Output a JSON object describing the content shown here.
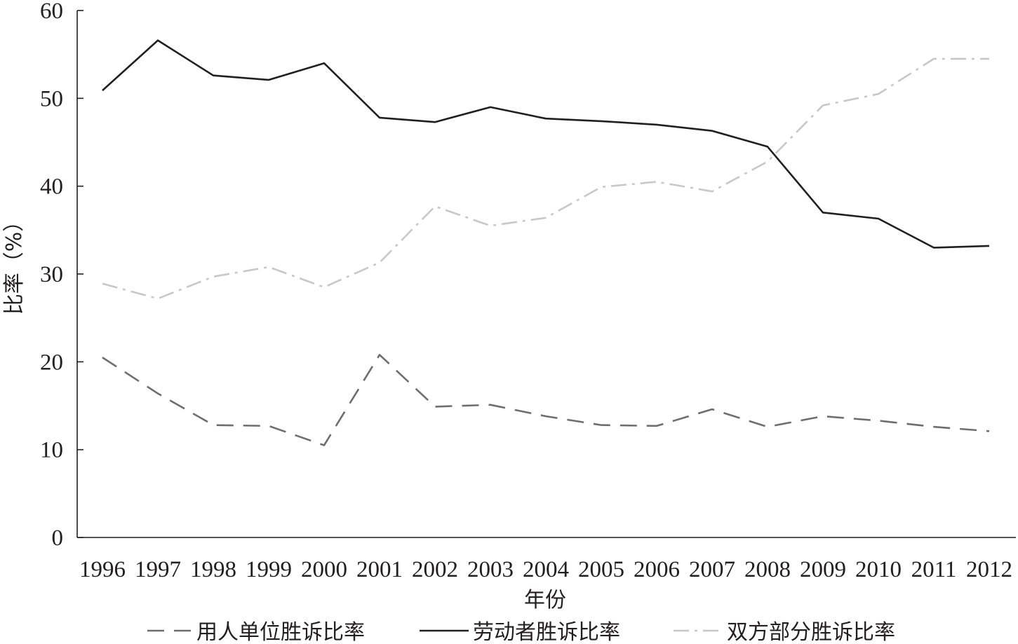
{
  "chart_data": {
    "type": "line",
    "title": "",
    "xlabel": "年份",
    "ylabel": "比率（%）",
    "x": [
      "1996",
      "1997",
      "1998",
      "1999",
      "2000",
      "2001",
      "2002",
      "2003",
      "2004",
      "2005",
      "2006",
      "2007",
      "2008",
      "2009",
      "2010",
      "2011",
      "2012"
    ],
    "ylim": [
      0,
      60
    ],
    "yticks": [
      0,
      10,
      20,
      30,
      40,
      50,
      60
    ],
    "grid": false,
    "legend_position": "bottom",
    "series": [
      {
        "name": "用人单位胜诉比率",
        "style": "dashed",
        "color": "#6d6e71",
        "values": [
          20.5,
          16.4,
          12.8,
          12.7,
          10.5,
          20.8,
          14.9,
          15.1,
          13.8,
          12.8,
          12.7,
          14.6,
          12.6,
          13.8,
          13.3,
          12.6,
          12.1
        ]
      },
      {
        "name": "劳动者胜诉比率",
        "style": "solid",
        "color": "#231f20",
        "values": [
          50.9,
          56.6,
          52.6,
          52.1,
          54.0,
          47.8,
          47.3,
          49.0,
          47.7,
          47.4,
          47.0,
          46.3,
          44.5,
          37.0,
          36.3,
          33.0,
          33.2
        ]
      },
      {
        "name": "双方部分胜诉比率",
        "style": "dashdot",
        "color": "#c7c8ca",
        "values": [
          28.9,
          27.2,
          29.7,
          30.8,
          28.5,
          31.3,
          37.7,
          35.5,
          36.4,
          39.9,
          40.5,
          39.4,
          42.8,
          49.2,
          50.5,
          54.5,
          54.5
        ]
      }
    ]
  }
}
